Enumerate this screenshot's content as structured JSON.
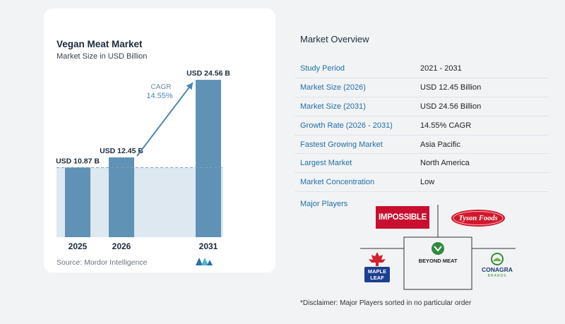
{
  "chart": {
    "title": "Vegan Meat Market",
    "subtitle": "Market Size in USD Billion",
    "source": "Source: Mordor Intelligence",
    "cagr_label": "CAGR",
    "cagr_value": "14.55%"
  },
  "chart_data": {
    "type": "bar",
    "categories": [
      "2025",
      "2026",
      "2031"
    ],
    "values": [
      10.87,
      12.45,
      24.56
    ],
    "labels": [
      "USD 10.87 B",
      "USD 12.45 B",
      "USD 24.56 B"
    ],
    "ylim": [
      0,
      26
    ],
    "title": "Vegan Meat Market",
    "subtitle": "Market Size in USD Billion",
    "annotation": "CAGR 14.55%",
    "colors": {
      "bar": "#5f92b5",
      "bar_top": "#6fa0c2",
      "band": "#dde8f1",
      "arrow": "#4d86b1"
    }
  },
  "overview": {
    "title": "Market Overview",
    "rows": [
      {
        "label": "Study Period",
        "value": "2021 - 2031"
      },
      {
        "label": "Market Size (2026)",
        "value": "USD 12.45 Billion"
      },
      {
        "label": "Market Size (2031)",
        "value": "USD 24.56 Billion"
      },
      {
        "label": "Growth Rate (2026 - 2031)",
        "value": "14.55% CAGR"
      },
      {
        "label": "Fastest Growing Market",
        "value": "Asia Pacific"
      },
      {
        "label": "Largest Market",
        "value": "North America"
      },
      {
        "label": "Market Concentration",
        "value": "Low"
      }
    ]
  },
  "players": {
    "label": "Major Players",
    "logos": {
      "impossible": "IMPOSSIBLE",
      "tyson": "Tyson Foods",
      "maple1": "MAPLE",
      "maple2": "LEAF",
      "beyond": "BEYOND MEAT",
      "conagra": "CONAGRA",
      "conagra_sub": "BRANDS"
    }
  },
  "disclaimer": "*Disclaimer: Major Players sorted in no particular order",
  "colors": {
    "accent": "#1f6fa8",
    "bar": "#5f92b5"
  }
}
